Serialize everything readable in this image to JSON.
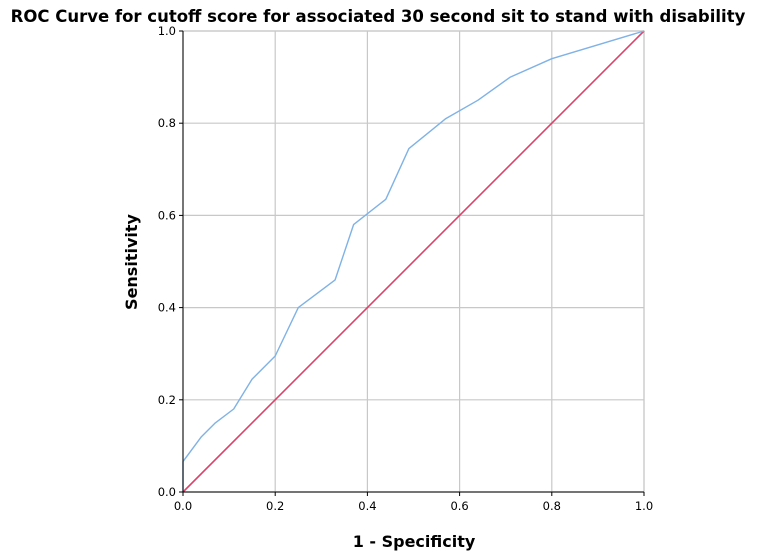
{
  "chart_data": {
    "type": "line",
    "title": "ROC Curve for cutoff score for associated 30 second sit to stand with disability",
    "xlabel": "1 - Specificity",
    "ylabel": "Sensitivity",
    "xlim": [
      0,
      1
    ],
    "ylim": [
      0,
      1
    ],
    "xticks": [
      "0.0",
      "0.2",
      "0.4",
      "0.6",
      "0.8",
      "1.0"
    ],
    "yticks": [
      "0.0",
      "0.2",
      "0.4",
      "0.6",
      "0.8",
      "1.0"
    ],
    "grid": true,
    "legend": "none",
    "series": [
      {
        "color": "#7FB2E6",
        "x": [
          0.0,
          0.0,
          0.04,
          0.07,
          0.11,
          0.15,
          0.2,
          0.25,
          0.33,
          0.37,
          0.44,
          0.49,
          0.57,
          0.64,
          0.71,
          0.8,
          1.0
        ],
        "y": [
          0.0,
          0.066,
          0.12,
          0.15,
          0.18,
          0.245,
          0.295,
          0.4,
          0.46,
          0.58,
          0.635,
          0.745,
          0.81,
          0.85,
          0.9,
          0.94,
          1.0
        ]
      },
      {
        "color": "#D9456A",
        "x": [
          0.0,
          1.0
        ],
        "y": [
          0.0,
          1.0
        ]
      }
    ]
  }
}
